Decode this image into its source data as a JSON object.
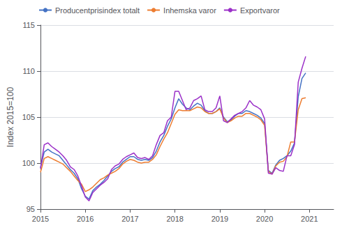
{
  "chart_data": {
    "type": "line",
    "ylabel": "Index 2015=100",
    "x": [
      2015,
      2015.0833333333,
      2015.1666666667,
      2015.25,
      2015.3333333333,
      2015.4166666667,
      2015.5,
      2015.5833333333,
      2015.6666666667,
      2015.75,
      2015.8333333333,
      2015.9166666667,
      2016,
      2016.0833333333,
      2016.1666666667,
      2016.25,
      2016.3333333333,
      2016.4166666667,
      2016.5,
      2016.5833333333,
      2016.6666666667,
      2016.75,
      2016.8333333333,
      2016.9166666667,
      2017,
      2017.0833333333,
      2017.1666666667,
      2017.25,
      2017.3333333333,
      2017.4166666667,
      2017.5,
      2017.5833333333,
      2017.6666666667,
      2017.75,
      2017.8333333333,
      2017.9166666667,
      2018,
      2018.0833333333,
      2018.1666666667,
      2018.25,
      2018.3333333333,
      2018.4166666667,
      2018.5,
      2018.5833333333,
      2018.6666666667,
      2018.75,
      2018.8333333333,
      2018.9166666667,
      2019,
      2019.0833333333,
      2019.1666666667,
      2019.25,
      2019.3333333333,
      2019.4166666667,
      2019.5,
      2019.5833333333,
      2019.6666666667,
      2019.75,
      2019.8333333333,
      2019.9166666667,
      2020,
      2020.0833333333,
      2020.1666666667,
      2020.25,
      2020.3333333333,
      2020.4166666667,
      2020.5,
      2020.5833333333,
      2020.6666666667,
      2020.75,
      2020.8333333333,
      2020.9166666667
    ],
    "xlim": [
      2015.0,
      2021.54
    ],
    "xticks": [
      2015,
      2016,
      2017,
      2018,
      2019,
      2020,
      2021
    ],
    "ylim": [
      95,
      115
    ],
    "yticks": [
      95,
      100,
      105,
      110,
      115
    ],
    "grid": true,
    "legend": "upper left",
    "series": [
      {
        "name": "Producentprisindex totalt",
        "color": "#4472c4",
        "values": [
          99.5,
          101.2,
          101.5,
          101.2,
          101.0,
          100.8,
          100.3,
          99.8,
          99.3,
          98.9,
          98.3,
          97.2,
          96.4,
          96.1,
          97.0,
          97.4,
          97.7,
          98.1,
          98.6,
          99.1,
          99.4,
          99.6,
          100.1,
          100.4,
          100.7,
          100.7,
          100.4,
          100.3,
          100.4,
          100.3,
          100.6,
          101.3,
          102.3,
          103.0,
          104.0,
          104.8,
          106.0,
          107.0,
          106.4,
          106.0,
          105.8,
          106.2,
          106.5,
          106.3,
          105.7,
          105.4,
          105.4,
          105.6,
          106.0,
          105.0,
          104.5,
          104.7,
          105.1,
          105.4,
          105.4,
          105.7,
          105.6,
          105.4,
          105.2,
          104.9,
          104.3,
          99.2,
          98.9,
          99.8,
          100.3,
          100.5,
          100.8,
          101.3,
          102.2,
          107.2,
          109.2,
          109.8
        ]
      },
      {
        "name": "Inhemska varor",
        "color": "#ed7d31",
        "values": [
          99.0,
          100.5,
          100.7,
          100.5,
          100.3,
          100.1,
          99.9,
          99.5,
          99.1,
          98.6,
          98.1,
          97.7,
          96.9,
          97.1,
          97.4,
          97.8,
          98.2,
          98.4,
          98.7,
          98.9,
          99.1,
          99.4,
          99.9,
          100.2,
          100.4,
          100.3,
          100.1,
          100.0,
          100.1,
          100.1,
          100.4,
          100.9,
          101.8,
          102.6,
          103.3,
          104.3,
          105.3,
          105.8,
          105.7,
          105.7,
          105.7,
          105.9,
          106.1,
          106.0,
          105.6,
          105.4,
          105.4,
          105.6,
          105.9,
          104.9,
          104.4,
          104.6,
          104.9,
          105.1,
          105.1,
          105.4,
          105.4,
          105.2,
          105.0,
          104.7,
          104.1,
          99.1,
          98.8,
          99.7,
          100.1,
          100.2,
          100.7,
          102.3,
          102.3,
          105.8,
          107.0,
          107.1
        ]
      },
      {
        "name": "Exportvaror",
        "color": "#9b30c8",
        "values": [
          99.4,
          102.0,
          102.2,
          101.8,
          101.5,
          101.2,
          100.8,
          100.3,
          99.6,
          99.3,
          98.6,
          97.5,
          96.3,
          95.9,
          96.8,
          97.2,
          97.6,
          97.9,
          98.3,
          99.3,
          99.7,
          99.9,
          100.4,
          100.7,
          100.9,
          101.1,
          100.6,
          100.5,
          100.6,
          100.4,
          100.8,
          102.0,
          103.0,
          103.3,
          104.6,
          105.0,
          107.8,
          107.8,
          106.8,
          105.8,
          106.0,
          106.8,
          107.0,
          107.3,
          105.8,
          105.6,
          105.6,
          106.0,
          107.3,
          104.6,
          104.4,
          104.8,
          105.2,
          105.4,
          105.6,
          106.0,
          106.8,
          106.3,
          106.1,
          105.8,
          104.8,
          98.9,
          98.8,
          99.5,
          99.2,
          99.1,
          100.8,
          100.8,
          102.0,
          108.8,
          110.3,
          111.6
        ]
      }
    ]
  }
}
